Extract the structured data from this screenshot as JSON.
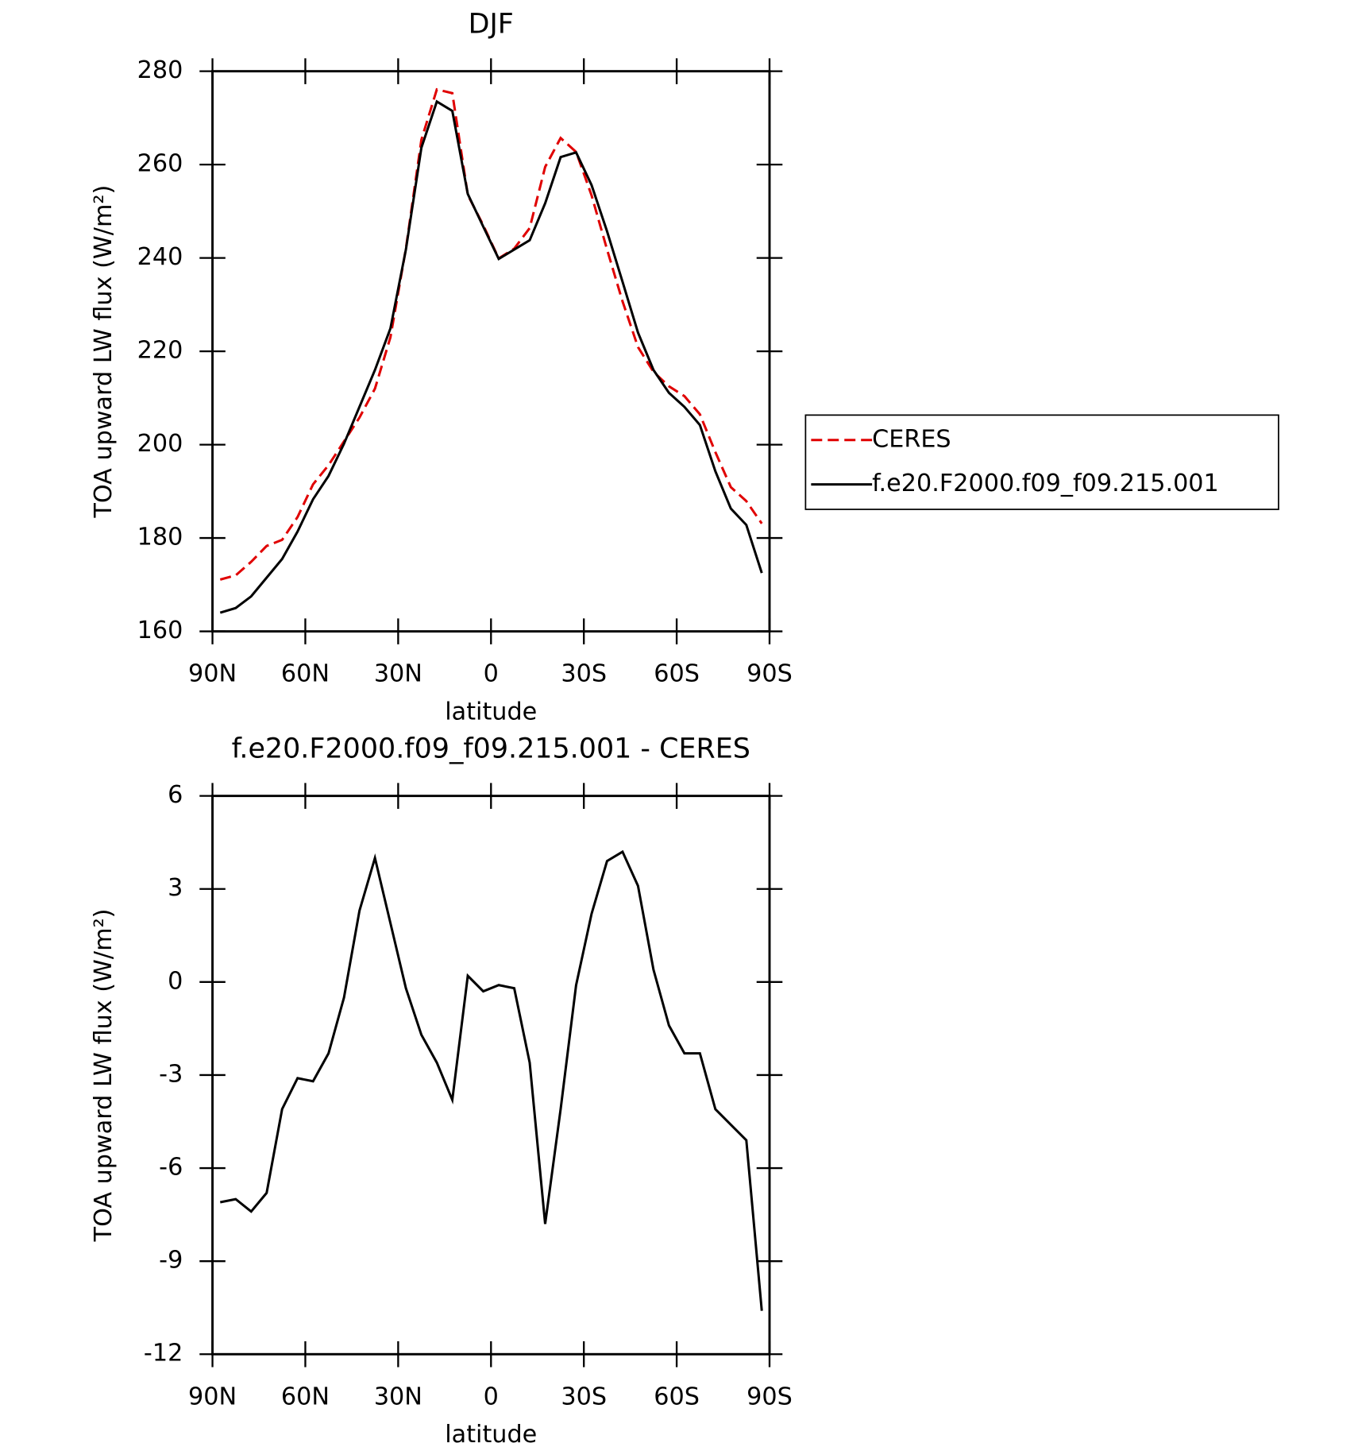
{
  "chart_data": [
    {
      "type": "line",
      "title": "DJF",
      "x_label": "latitude",
      "y_label": "TOA upward LW flux (W/m²)",
      "x": [
        87.5,
        82.5,
        77.5,
        72.5,
        67.5,
        62.5,
        57.5,
        52.5,
        47.5,
        42.5,
        37.5,
        32.5,
        27.5,
        22.5,
        17.5,
        12.5,
        7.5,
        2.5,
        -2.5,
        -7.5,
        -12.5,
        -17.5,
        -22.5,
        -27.5,
        -32.5,
        -37.5,
        -42.5,
        -47.5,
        -52.5,
        -57.5,
        -62.5,
        -67.5,
        -72.5,
        -77.5,
        -82.5,
        -87.5
      ],
      "series": [
        {
          "name": "CERES",
          "color": "#e00000",
          "line_style": "dashed",
          "values": [
            171.1,
            172.0,
            174.9,
            178.3,
            179.6,
            184.5,
            191.5,
            195.6,
            200.7,
            205.8,
            212.0,
            223.0,
            242.0,
            265.3,
            276.1,
            275.3,
            253.5,
            247.0,
            239.9,
            242.0,
            246.4,
            259.5,
            265.7,
            262.7,
            253.4,
            241.8,
            230.7,
            220.9,
            215.6,
            212.5,
            210.4,
            206.5,
            198.4,
            190.9,
            187.9,
            183.1
          ]
        },
        {
          "name": "f.e20.F2000.f09_f09.215.001",
          "color": "#000000",
          "line_style": "solid",
          "values": [
            164.0,
            165.0,
            167.5,
            171.5,
            175.5,
            181.4,
            188.3,
            193.3,
            200.2,
            208.1,
            216.0,
            224.9,
            241.8,
            263.6,
            273.5,
            271.5,
            253.7,
            246.7,
            239.8,
            241.8,
            243.8,
            251.7,
            261.6,
            262.6,
            255.6,
            245.7,
            234.9,
            224.0,
            216.0,
            211.1,
            208.1,
            204.2,
            194.3,
            186.3,
            182.8,
            172.5
          ]
        }
      ],
      "xlim": [
        90,
        -90
      ],
      "xticks": [
        {
          "value": 90,
          "label": "90N"
        },
        {
          "value": 60,
          "label": "60N"
        },
        {
          "value": 30,
          "label": "30N"
        },
        0,
        {
          "value": -30,
          "label": "30S"
        },
        {
          "value": -60,
          "label": "60S"
        },
        {
          "value": -90,
          "label": "90S"
        }
      ],
      "ylim": [
        160,
        280
      ],
      "yticks": [
        160,
        180,
        200,
        220,
        240,
        260,
        280
      ],
      "legend": "right"
    },
    {
      "type": "line",
      "title": "f.e20.F2000.f09_f09.215.001 - CERES",
      "x_label": "latitude",
      "y_label": "TOA upward LW flux (W/m²)",
      "x": [
        87.5,
        82.5,
        77.5,
        72.5,
        67.5,
        62.5,
        57.5,
        52.5,
        47.5,
        42.5,
        37.5,
        32.5,
        27.5,
        22.5,
        17.5,
        12.5,
        7.5,
        2.5,
        -2.5,
        -7.5,
        -12.5,
        -17.5,
        -22.5,
        -27.5,
        -32.5,
        -37.5,
        -42.5,
        -47.5,
        -52.5,
        -57.5,
        -62.5,
        -67.5,
        -72.5,
        -77.5,
        -82.5,
        -87.5
      ],
      "series": [
        {
          "color": "#000000",
          "line_style": "solid",
          "values": [
            -7.1,
            -7.0,
            -7.4,
            -6.8,
            -4.1,
            -3.1,
            -3.2,
            -2.3,
            -0.5,
            2.3,
            4.0,
            1.9,
            -0.2,
            -1.7,
            -2.6,
            -3.8,
            0.2,
            -0.3,
            -0.1,
            -0.2,
            -2.6,
            -7.8,
            -4.1,
            -0.1,
            2.2,
            3.9,
            4.2,
            3.1,
            0.4,
            -1.4,
            -2.3,
            -2.3,
            -4.1,
            -4.6,
            -5.1,
            -10.6
          ]
        }
      ],
      "xlim": [
        90,
        -90
      ],
      "xticks": [
        {
          "value": 90,
          "label": "90N"
        },
        {
          "value": 60,
          "label": "60N"
        },
        {
          "value": 30,
          "label": "30N"
        },
        0,
        {
          "value": -30,
          "label": "30S"
        },
        {
          "value": -60,
          "label": "60S"
        },
        {
          "value": -90,
          "label": "90S"
        }
      ],
      "ylim": [
        -12,
        6
      ],
      "yticks": [
        -12,
        -9,
        -6,
        -3,
        0,
        3,
        6
      ]
    }
  ]
}
